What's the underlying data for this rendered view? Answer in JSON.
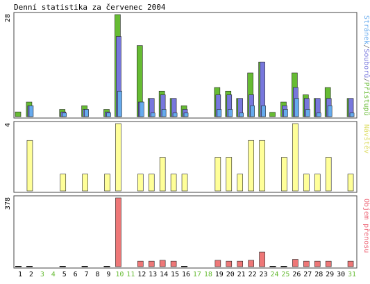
{
  "chart_data": {
    "type": "bar",
    "title": "Denní statistika za červenec 2004",
    "categories": [
      "1",
      "2",
      "3",
      "4",
      "5",
      "6",
      "7",
      "8",
      "9",
      "10",
      "11",
      "12",
      "13",
      "14",
      "15",
      "16",
      "17",
      "18",
      "19",
      "20",
      "21",
      "22",
      "23",
      "24",
      "25",
      "26",
      "27",
      "28",
      "29",
      "30",
      "31"
    ],
    "weekend_days": [
      "3",
      "4",
      "10",
      "11",
      "17",
      "18",
      "24",
      "25",
      "31"
    ],
    "panels": [
      {
        "id": "top",
        "ymax_label": "28",
        "ymax": 28,
        "legend": [
          {
            "text": "Stránek",
            "color": "#66aaee"
          },
          {
            "text": "/",
            "color": "#777777"
          },
          {
            "text": "Souborů",
            "color": "#7777dd"
          },
          {
            "text": "/",
            "color": "#777777"
          },
          {
            "text": "Přístupů",
            "color": "#66bb33"
          }
        ],
        "series": [
          {
            "name": "Přístupů",
            "color": "#66bb33",
            "values": [
              1.3,
              4,
              0,
              0,
              2,
              0,
              3,
              0,
              2,
              28,
              0,
              19.5,
              5,
              7,
              5,
              3,
              0,
              0,
              8,
              7,
              5,
              12,
              15,
              1.2,
              4,
              12,
              6,
              5,
              8,
              0,
              5
            ]
          },
          {
            "name": "Souborů",
            "color": "#7777dd",
            "values": [
              0,
              3,
              0,
              0,
              1.3,
              0,
              2,
              0,
              1.3,
              22,
              0,
              4,
              5,
              6,
              5,
              2,
              0,
              0,
              6,
              6,
              5,
              6,
              15,
              0,
              3,
              8,
              5,
              5,
              5,
              0,
              5
            ]
          },
          {
            "name": "Stránek",
            "color": "#66aaee",
            "values": [
              0,
              3,
              0,
              0,
              1,
              0,
              2,
              0,
              1,
              7,
              0,
              4,
              1,
              2,
              1,
              1,
              0,
              0,
              2,
              2,
              1,
              3,
              3,
              0,
              2,
              5,
              2,
              1,
              3,
              0,
              1
            ]
          }
        ]
      },
      {
        "id": "middle",
        "ymax_label": "4",
        "ymax": 4,
        "legend": [
          {
            "text": "Návštěv",
            "color": "#dddd66"
          }
        ],
        "series": [
          {
            "name": "Návštěv",
            "color": "#ffff99",
            "values": [
              0,
              3,
              0,
              0,
              1,
              0,
              1,
              0,
              1,
              4,
              0,
              1,
              1,
              2,
              1,
              1,
              0,
              0,
              2,
              2,
              1,
              3,
              3,
              0,
              2,
              4,
              1,
              1,
              2,
              0,
              1
            ]
          }
        ]
      },
      {
        "id": "bottom",
        "ymax_label": "378",
        "ymax": 378,
        "legend": [
          {
            "text": "Objem přenosu",
            "color": "#ee6677"
          }
        ],
        "series": [
          {
            "name": "Objem přenosu",
            "color": "#ee7777",
            "values": [
              0,
              0,
              0,
              0,
              0,
              0,
              0,
              0,
              0,
              378,
              0,
              30,
              30,
              35,
              30,
              0,
              0,
              0,
              35,
              30,
              30,
              35,
              80,
              0,
              0,
              40,
              30,
              30,
              30,
              0,
              30
            ]
          }
        ]
      }
    ]
  }
}
